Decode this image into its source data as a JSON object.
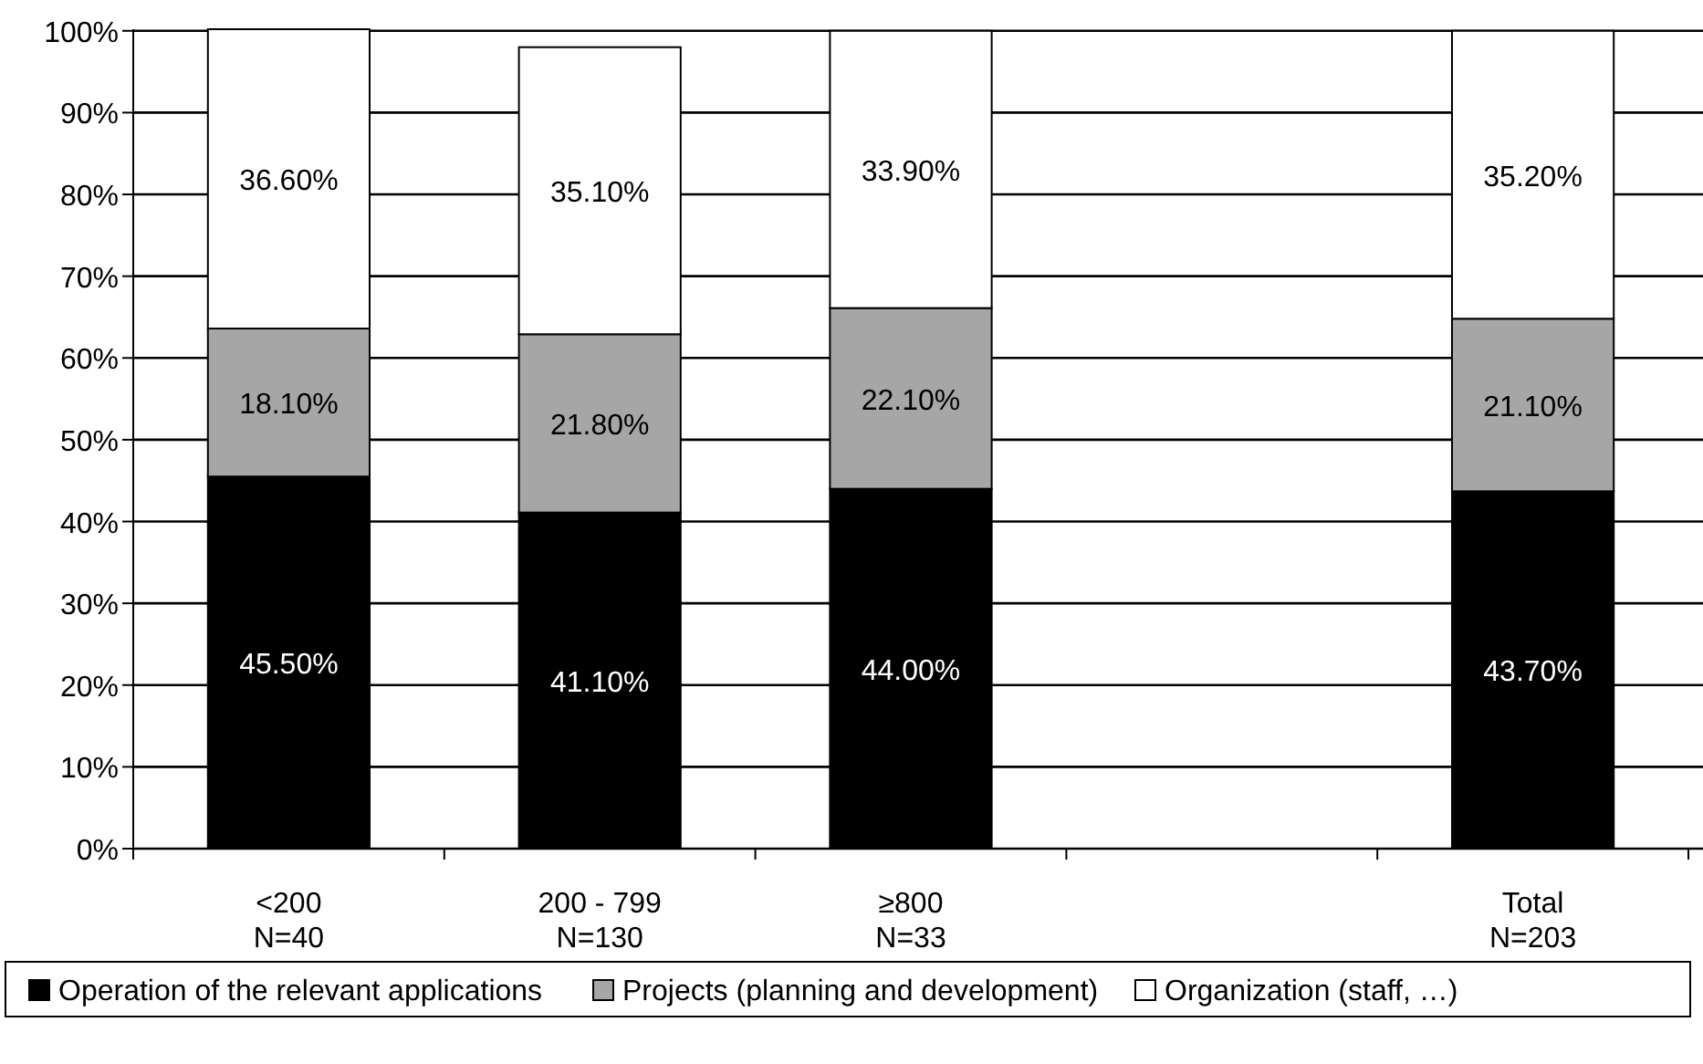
{
  "chart_data": {
    "type": "bar",
    "stacked": true,
    "categories": [
      "<200\nN=40",
      "200 - 799\nN=130",
      "≥800\nN=33",
      null,
      "Total\nN=203"
    ],
    "series": [
      {
        "name": "Operation of the relevant applications",
        "color": "#000000",
        "values": [
          45.5,
          41.1,
          44.0,
          null,
          43.7
        ]
      },
      {
        "name": "Projects (planning and development)",
        "color": "#a6a6a6",
        "values": [
          18.1,
          21.8,
          22.1,
          null,
          21.1
        ]
      },
      {
        "name": "Organization (staff, …)",
        "color": "#ffffff",
        "values": [
          36.6,
          35.1,
          33.9,
          null,
          35.2
        ]
      }
    ],
    "value_labels": [
      [
        "45.50%",
        "41.10%",
        "44.00%",
        null,
        "43.70%"
      ],
      [
        "18.10%",
        "21.80%",
        "22.10%",
        null,
        "21.10%"
      ],
      [
        "36.60%",
        "35.10%",
        "33.90%",
        null,
        "35.20%"
      ]
    ],
    "ylim": [
      0,
      100.2
    ],
    "yticks": [
      {
        "value": 0,
        "label": "0%"
      },
      {
        "value": 10,
        "label": "10%"
      },
      {
        "value": 20,
        "label": "20%"
      },
      {
        "value": 30,
        "label": "30%"
      },
      {
        "value": 40,
        "label": "40%"
      },
      {
        "value": 50,
        "label": "50%"
      },
      {
        "value": 60,
        "label": "60%"
      },
      {
        "value": 70,
        "label": "70%"
      },
      {
        "value": 80,
        "label": "80%"
      },
      {
        "value": 90,
        "label": "90%"
      },
      {
        "value": 100,
        "label": "100%"
      }
    ],
    "grid": "y",
    "legend": "bottom"
  }
}
